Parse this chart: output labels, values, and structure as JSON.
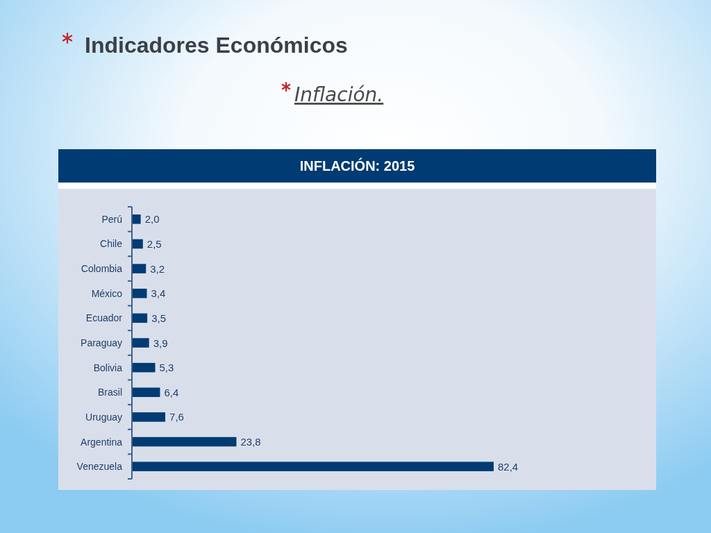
{
  "chart_data": {
    "type": "bar",
    "orientation": "horizontal",
    "title": "Indicadores Económicos",
    "subtitle": "Inflación.",
    "annotations": [
      "INFLACIÓN: 2015"
    ],
    "categories": [
      "Perú",
      "Chile",
      "Colombia",
      "México",
      "Ecuador",
      "Paraguay",
      "Bolivia",
      "Brasil",
      "Uruguay",
      "Argentina",
      "Venezuela"
    ],
    "values": [
      2.0,
      2.5,
      3.2,
      3.4,
      3.5,
      3.9,
      5.3,
      6.4,
      7.6,
      23.8,
      82.4
    ],
    "value_labels": [
      "2,0",
      "2,5",
      "3,2",
      "3,4",
      "3,5",
      "3,9",
      "5,3",
      "6,4",
      "7,6",
      "23,8",
      "82,4"
    ],
    "color": "#003b73"
  }
}
